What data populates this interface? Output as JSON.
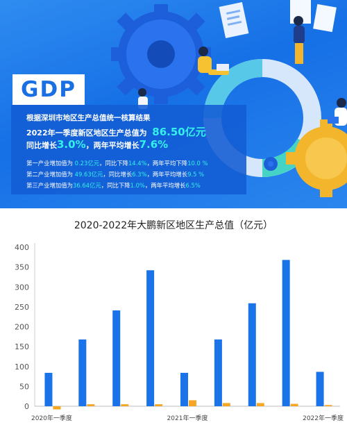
{
  "banner": {
    "gdp_label": "GDP",
    "line1": "根据深圳市地区生产总值统一核算结果",
    "line2_prefix": "2022年一季度新区地区生产总值为",
    "line2_value": "86.50亿元",
    "line3_a": "同比增长",
    "line3_b": "3.0%",
    "line3_c": "，两年平均增长",
    "line3_d": "7.6%",
    "sectors": [
      {
        "a": "第一产业增加值为 ",
        "v1": "0.23亿元",
        "b": "，同比下降",
        "v2": "14.4%",
        "c": "，两年平均下降",
        "v3": "10.0 %"
      },
      {
        "a": "第二产业增加值为 ",
        "v1": "49.63亿元",
        "b": "，同比增长",
        "v2": "6.3%",
        "c": "，两年平均增长",
        "v3": "9.5 %"
      },
      {
        "a": "第三产业增加值为",
        "v1": "36.64亿元",
        "b": "，同比下降",
        "v2": "1.0%",
        "c": "，两年平均增长",
        "v3": "6.5%"
      }
    ]
  },
  "chart_data": {
    "type": "bar",
    "title": "2020-2022年大鹏新区地区生产总值（亿元）",
    "categories": [
      "2020年一季度",
      "",
      "",
      "",
      "2021年一季度",
      "",
      "",
      "",
      "2022年一季度"
    ],
    "series": [
      {
        "values": [
          84,
          168,
          241,
          342,
          84,
          168,
          259,
          368,
          86.5
        ],
        "color": "#1a73e8"
      },
      {
        "values": [
          -8,
          5,
          5,
          5,
          15,
          8,
          8,
          6,
          3
        ],
        "color": "#f5a623"
      }
    ],
    "ylim": [
      -10,
      400
    ],
    "yticks": [
      0,
      50,
      100,
      150,
      200,
      250,
      300,
      350,
      400
    ],
    "grid": false
  }
}
